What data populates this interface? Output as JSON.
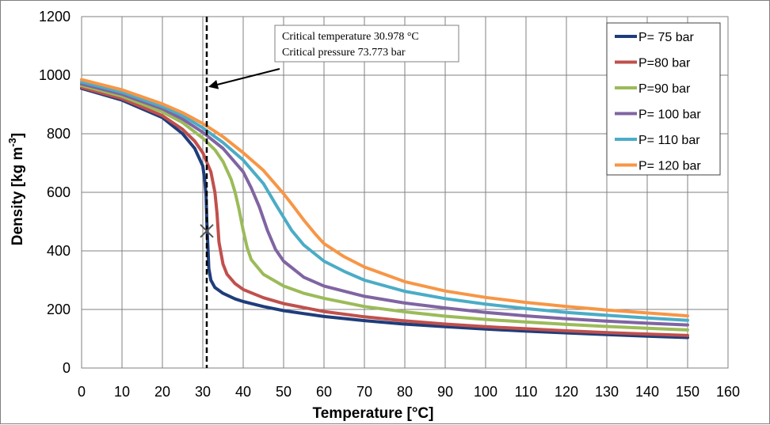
{
  "chart_data": {
    "type": "line",
    "xlabel": "Temperature [°C]",
    "ylabel_main": "Density [kg m",
    "ylabel_sup": "-3",
    "ylabel_end": "]",
    "xlim": [
      0,
      160
    ],
    "ylim": [
      0,
      1200
    ],
    "xticks": [
      0,
      10,
      20,
      30,
      40,
      50,
      60,
      70,
      80,
      90,
      100,
      110,
      120,
      130,
      140,
      150,
      160
    ],
    "yticks": [
      0,
      200,
      400,
      600,
      800,
      1000,
      1200
    ],
    "grid": true,
    "legend_position": "top-right",
    "series": [
      {
        "name": "P= 75 bar",
        "color": "#1F3D7A",
        "x": [
          0,
          10,
          20,
          25,
          28,
          30,
          30.5,
          30.8,
          31,
          31.5,
          32,
          33,
          35,
          38,
          40,
          45,
          50,
          60,
          70,
          80,
          90,
          100,
          110,
          120,
          130,
          140,
          150
        ],
        "y": [
          955,
          915,
          855,
          800,
          750,
          690,
          640,
          590,
          500,
          340,
          300,
          275,
          255,
          236,
          227,
          210,
          196,
          176,
          162,
          150,
          141,
          133,
          126,
          120,
          114,
          109,
          104
        ]
      },
      {
        "name": "P=80 bar",
        "color": "#C0504D",
        "x": [
          0,
          10,
          20,
          25,
          28,
          30,
          32,
          33,
          33.5,
          34,
          35,
          36,
          38,
          40,
          45,
          50,
          60,
          70,
          80,
          90,
          100,
          110,
          120,
          130,
          140,
          150
        ],
        "y": [
          958,
          920,
          862,
          815,
          775,
          735,
          670,
          600,
          530,
          430,
          355,
          320,
          288,
          268,
          240,
          220,
          193,
          175,
          161,
          150,
          141,
          134,
          127,
          121,
          116,
          111
        ]
      },
      {
        "name": "P=90 bar",
        "color": "#9BBB59",
        "x": [
          0,
          10,
          20,
          25,
          30,
          33,
          35,
          37,
          38,
          39,
          40,
          41,
          42,
          45,
          50,
          55,
          60,
          70,
          80,
          90,
          100,
          110,
          120,
          130,
          140,
          150
        ],
        "y": [
          965,
          928,
          875,
          838,
          785,
          745,
          705,
          645,
          600,
          540,
          470,
          410,
          370,
          320,
          280,
          255,
          238,
          210,
          192,
          177,
          166,
          157,
          149,
          142,
          136,
          130
        ]
      },
      {
        "name": "P= 100 bar",
        "color": "#8064A2",
        "x": [
          0,
          10,
          20,
          25,
          30,
          35,
          40,
          42,
          44,
          45,
          46,
          48,
          50,
          55,
          60,
          70,
          80,
          90,
          100,
          110,
          120,
          130,
          140,
          150
        ],
        "y": [
          970,
          935,
          885,
          850,
          805,
          750,
          670,
          615,
          550,
          510,
          470,
          405,
          365,
          310,
          280,
          245,
          222,
          205,
          190,
          178,
          168,
          160,
          153,
          147
        ]
      },
      {
        "name": "P= 110 bar",
        "color": "#4BACC6",
        "x": [
          0,
          10,
          20,
          25,
          30,
          35,
          40,
          45,
          48,
          50,
          52,
          55,
          60,
          65,
          70,
          80,
          90,
          100,
          110,
          120,
          130,
          140,
          150
        ],
        "y": [
          977,
          942,
          893,
          862,
          820,
          770,
          710,
          630,
          560,
          515,
          470,
          420,
          365,
          330,
          300,
          262,
          237,
          218,
          203,
          190,
          180,
          171,
          163
        ]
      },
      {
        "name": "P= 120 bar",
        "color": "#F79646",
        "x": [
          0,
          10,
          20,
          25,
          30,
          35,
          40,
          45,
          50,
          52,
          55,
          58,
          60,
          65,
          70,
          80,
          90,
          100,
          110,
          120,
          130,
          140,
          150
        ],
        "y": [
          985,
          950,
          902,
          872,
          835,
          790,
          735,
          675,
          595,
          560,
          505,
          455,
          425,
          380,
          345,
          295,
          263,
          241,
          224,
          210,
          198,
          188,
          178
        ]
      }
    ],
    "critical_line_x": 30.978,
    "critical_point": {
      "x": 30.978,
      "y": 468
    },
    "annotation": {
      "line1": "Critical temperature 30.978 °C",
      "line2": "Critical pressure 73.773 bar",
      "arrow_target": {
        "x": 30.978,
        "y": 960
      }
    }
  }
}
